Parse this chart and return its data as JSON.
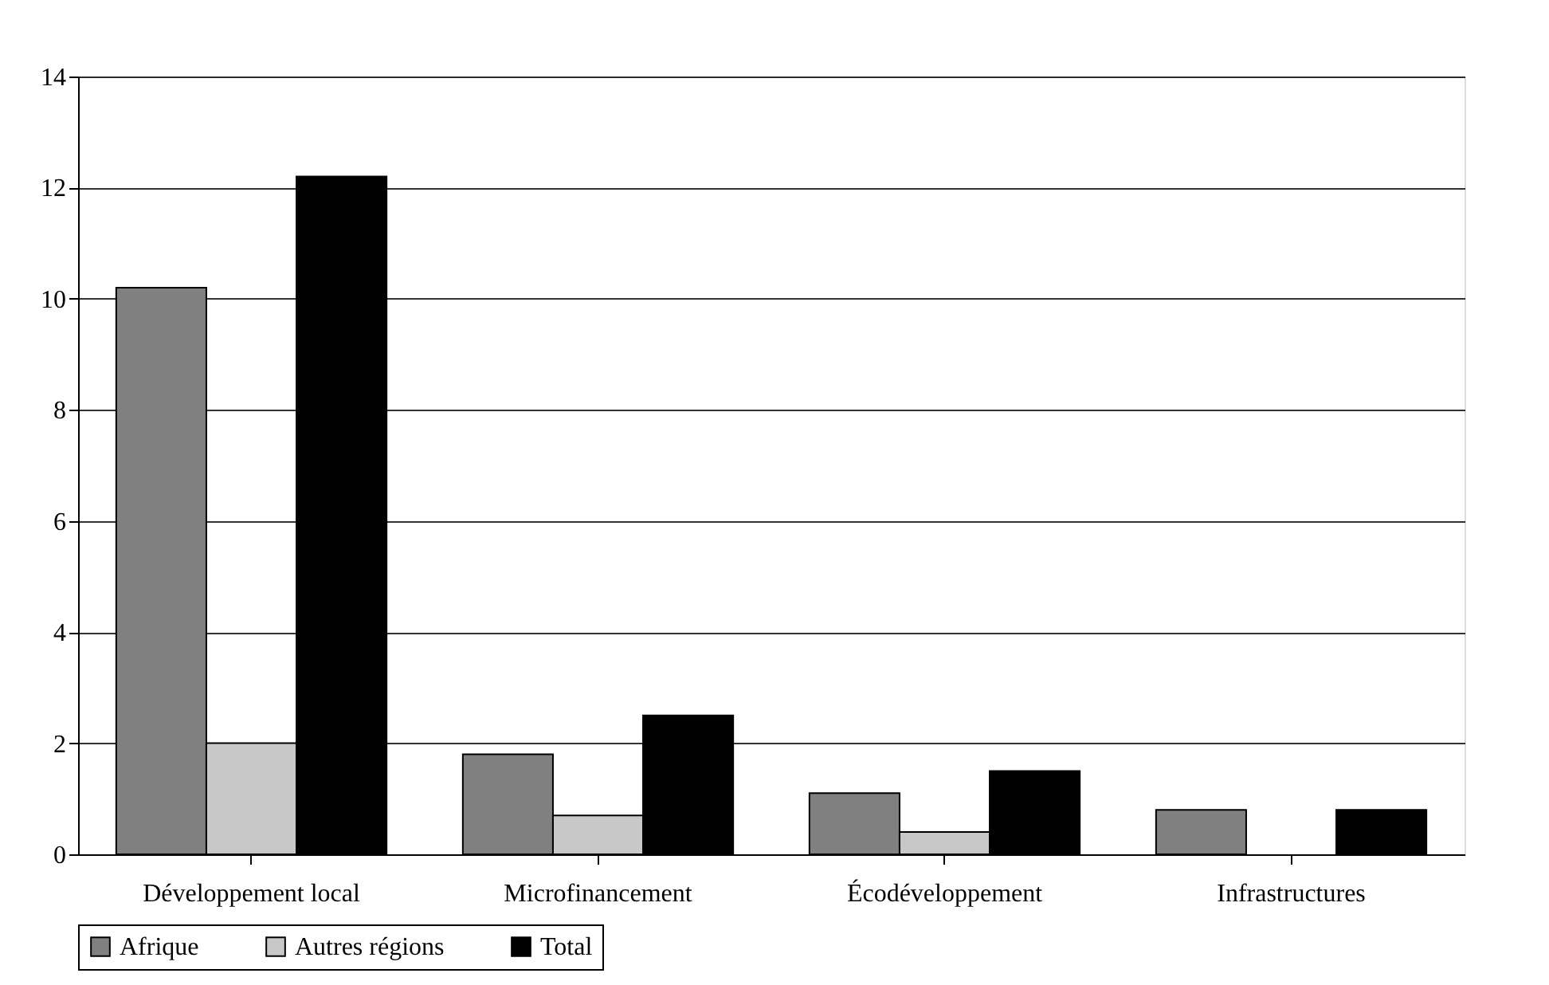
{
  "chart_data": {
    "type": "bar",
    "categories": [
      "Développement local",
      "Microfinancement",
      "Écodéveloppement",
      "Infrastructures"
    ],
    "series": [
      {
        "name": "Afrique",
        "color": "#808080",
        "values": [
          10.2,
          1.8,
          1.1,
          0.8
        ]
      },
      {
        "name": "Autres régions",
        "color": "#c8c8c8",
        "values": [
          2.0,
          0.7,
          0.4,
          null
        ]
      },
      {
        "name": "Total",
        "color": "#000000",
        "values": [
          12.2,
          2.5,
          1.5,
          0.8
        ]
      }
    ],
    "ylim": [
      0,
      14
    ],
    "yticks": [
      0,
      2,
      4,
      6,
      8,
      10,
      12,
      14
    ],
    "grid": "y",
    "legend": "bottom"
  }
}
